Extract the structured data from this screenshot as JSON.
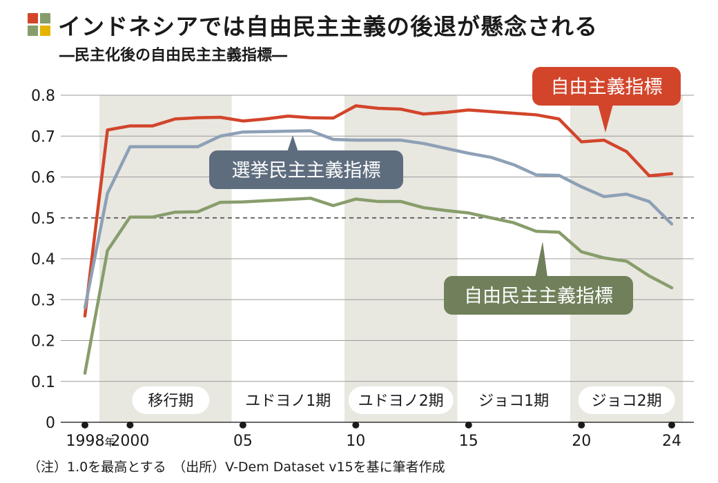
{
  "title": "インドネシアでは自由民主主義の後退が懸念される",
  "subtitle": "―民主化後の自由民主主義指標―",
  "note": "（注）1.0を最高とする　（出所）V-Dem Dataset v15を基に筆者作成",
  "colors": {
    "liberal": "#d2452b",
    "electoral": "#8da0b6",
    "liberal_democracy": "#889d6b",
    "electoral_label_bg": "#5e6d7e",
    "liberal_democracy_label_bg": "#6f805a",
    "period_shade": "#e8e7e0",
    "logo": [
      "#d2452b",
      "#889d6b",
      "#889d6b",
      "#e5b400"
    ]
  },
  "chart_data": {
    "type": "line",
    "title": "インドネシアでは自由民主主義の後退が懸念される",
    "subtitle": "―民主化後の自由民主主義指標―",
    "x": [
      1998,
      1999,
      2000,
      2001,
      2002,
      2003,
      2004,
      2005,
      2006,
      2007,
      2008,
      2009,
      2010,
      2011,
      2012,
      2013,
      2014,
      2015,
      2016,
      2017,
      2018,
      2019,
      2020,
      2021,
      2022,
      2023,
      2024
    ],
    "series": [
      {
        "name": "自由主義指標",
        "key": "liberal",
        "values": [
          0.26,
          0.715,
          0.725,
          0.725,
          0.742,
          0.745,
          0.746,
          0.737,
          0.742,
          0.749,
          0.745,
          0.744,
          0.774,
          0.768,
          0.766,
          0.754,
          0.758,
          0.764,
          0.76,
          0.756,
          0.752,
          0.742,
          0.686,
          0.69,
          0.662,
          0.603,
          0.608
        ]
      },
      {
        "name": "選挙民主主義指標",
        "key": "electoral",
        "values": [
          0.28,
          0.56,
          0.674,
          0.674,
          0.674,
          0.674,
          0.7,
          0.71,
          0.711,
          0.712,
          0.713,
          0.692,
          0.69,
          0.69,
          0.69,
          0.682,
          0.67,
          0.658,
          0.648,
          0.63,
          0.605,
          0.604,
          0.576,
          0.552,
          0.558,
          0.54,
          0.485
        ]
      },
      {
        "name": "自由民主主義指標",
        "key": "liberal_democracy",
        "values": [
          0.12,
          0.42,
          0.502,
          0.502,
          0.514,
          0.515,
          0.538,
          0.539,
          0.542,
          0.545,
          0.548,
          0.53,
          0.546,
          0.54,
          0.54,
          0.525,
          0.518,
          0.512,
          0.5,
          0.488,
          0.467,
          0.465,
          0.417,
          0.402,
          0.394,
          0.358,
          0.329
        ]
      }
    ],
    "ylim": [
      0,
      0.8
    ],
    "yticks": [
      "0",
      "0.1",
      "0.2",
      "0.3",
      "0.4",
      "0.5",
      "0.6",
      "0.7",
      "0.8"
    ],
    "xticks": [
      {
        "value": 1998,
        "label": "1998",
        "suffix": "年"
      },
      {
        "value": 2000,
        "label": "2000",
        "suffix": ""
      },
      {
        "value": 2005,
        "label": "05",
        "suffix": ""
      },
      {
        "value": 2010,
        "label": "10",
        "suffix": ""
      },
      {
        "value": 2015,
        "label": "15",
        "suffix": ""
      },
      {
        "value": 2020,
        "label": "20",
        "suffix": ""
      },
      {
        "value": 2024,
        "label": "24",
        "suffix": ""
      }
    ],
    "reference_line": 0.5,
    "periods": [
      {
        "label": "移行期",
        "start": 1998.5,
        "end": 2004.5,
        "shaded": true
      },
      {
        "label": "ユドヨノ1期",
        "start": 2004.5,
        "end": 2009.5,
        "shaded": false
      },
      {
        "label": "ユドヨノ2期",
        "start": 2009.5,
        "end": 2014.5,
        "shaded": true
      },
      {
        "label": "ジョコ1期",
        "start": 2014.5,
        "end": 2019.5,
        "shaded": false
      },
      {
        "label": "ジョコ2期",
        "start": 2019.5,
        "end": 2024.5,
        "shaded": true
      }
    ],
    "grid": true,
    "legend": "callout labels near lines"
  }
}
